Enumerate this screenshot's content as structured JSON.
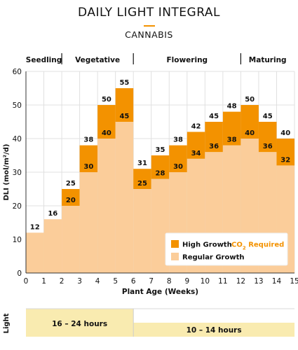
{
  "title": "DAILY LIGHT INTEGRAL",
  "subtitle": "CANNABIS",
  "colors": {
    "accent": "#f39200",
    "regular": "#fbcd9a",
    "light_band": "#f9ebb0",
    "grid": "#e0e0e0"
  },
  "chart_data": {
    "type": "bar",
    "stacked": true,
    "xlabel": "Plant Age (Weeks)",
    "ylabel": "DLI (mol/m²/d)",
    "ylim": [
      0,
      60
    ],
    "xlim": [
      0,
      15
    ],
    "yticks": [
      0,
      10,
      20,
      30,
      40,
      50,
      60
    ],
    "xticks": [
      "0",
      "1",
      "2",
      "3",
      "4",
      "5",
      "6",
      "7",
      "8",
      "9",
      "10",
      "11",
      "12",
      "13",
      "14",
      "15"
    ],
    "grid": true,
    "stages": [
      {
        "label": "Seedling",
        "start": 0,
        "end": 2
      },
      {
        "label": "Vegetative",
        "start": 2,
        "end": 6
      },
      {
        "label": "Flowering",
        "start": 6,
        "end": 12
      },
      {
        "label": "Maturing",
        "start": 12,
        "end": 15
      }
    ],
    "weeks": [
      {
        "week": 0,
        "regular": 12,
        "high": null
      },
      {
        "week": 1,
        "regular": 16,
        "high": null
      },
      {
        "week": 2,
        "regular": 20,
        "high": 25
      },
      {
        "week": 3,
        "regular": 30,
        "high": 38
      },
      {
        "week": 4,
        "regular": 40,
        "high": 50
      },
      {
        "week": 5,
        "regular": 45,
        "high": 55
      },
      {
        "week": 6,
        "regular": 25,
        "high": 31
      },
      {
        "week": 7,
        "regular": 28,
        "high": 35
      },
      {
        "week": 8,
        "regular": 30,
        "high": 38
      },
      {
        "week": 9,
        "regular": 34,
        "high": 42
      },
      {
        "week": 10,
        "regular": 36,
        "high": 45
      },
      {
        "week": 11,
        "regular": 38,
        "high": 48
      },
      {
        "week": 12,
        "regular": 40,
        "high": 50
      },
      {
        "week": 13,
        "regular": 36,
        "high": 45
      },
      {
        "week": 14,
        "regular": 32,
        "high": 40
      }
    ],
    "legend": {
      "placement": "bottom-right",
      "high_label": "High Growth",
      "co2_prefix": "CO",
      "co2_sub": "2",
      "co2_suffix": " Required",
      "regular_label": "Regular Growth"
    }
  },
  "light": {
    "label": "Light",
    "periods": [
      {
        "label": "16 – 24 hours",
        "start": 0,
        "end": 6
      },
      {
        "label": "10 – 14 hours",
        "start": 6,
        "end": 15
      }
    ]
  }
}
